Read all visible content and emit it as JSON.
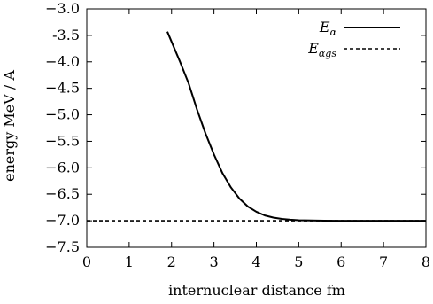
{
  "chart_data": {
    "type": "line",
    "xlabel": "internuclear distance  fm",
    "ylabel": "energy  MeV / A",
    "xlim": [
      0,
      8
    ],
    "ylim": [
      -7.5,
      -3.0
    ],
    "xticks": [
      0,
      1,
      2,
      3,
      4,
      5,
      6,
      7,
      8
    ],
    "xtick_labels": [
      "0",
      "1",
      "2",
      "3",
      "4",
      "5",
      "6",
      "7",
      "8"
    ],
    "yticks": [
      -7.5,
      -7.0,
      -6.5,
      -6.0,
      -5.5,
      -5.0,
      -4.5,
      -4.0,
      -3.5,
      -3.0
    ],
    "ytick_labels": [
      "−7.5",
      "−7.0",
      "−6.5",
      "−6.0",
      "−5.5",
      "−5.0",
      "−4.5",
      "−4.0",
      "-3.5",
      "−3.0"
    ],
    "grid": false,
    "legend_position": "top-right",
    "series": [
      {
        "name": "E_α",
        "label_main": "E",
        "label_sub": "α",
        "style": "solid",
        "color": "#000000",
        "x": [
          1.9,
          2.0,
          2.2,
          2.4,
          2.6,
          2.8,
          3.0,
          3.2,
          3.4,
          3.6,
          3.8,
          4.0,
          4.2,
          4.4,
          4.6,
          4.8,
          5.0,
          5.3,
          5.6,
          6.0,
          6.5,
          7.0,
          7.5,
          8.0
        ],
        "y": [
          -3.43,
          -3.62,
          -4.0,
          -4.4,
          -4.9,
          -5.35,
          -5.75,
          -6.1,
          -6.37,
          -6.58,
          -6.73,
          -6.83,
          -6.9,
          -6.94,
          -6.965,
          -6.98,
          -6.99,
          -6.995,
          -6.998,
          -7.0,
          -7.0,
          -7.0,
          -7.0,
          -7.0
        ]
      },
      {
        "name": "E_αgs",
        "label_main": "E",
        "label_sub": "αgs",
        "style": "dashed",
        "color": "#000000",
        "x": [
          0,
          8
        ],
        "y": [
          -7.0,
          -7.0
        ]
      }
    ]
  }
}
